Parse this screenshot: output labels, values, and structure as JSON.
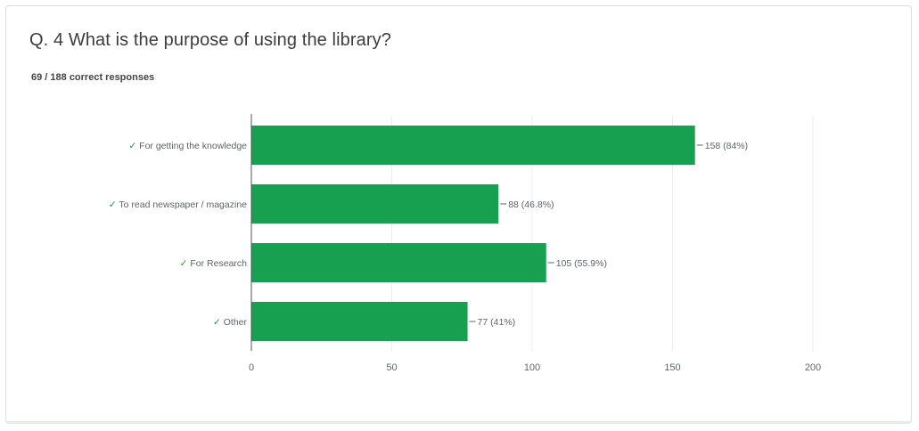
{
  "question": {
    "title": "Q. 4 What is the purpose of using the library?",
    "subtitle": "69 / 188 correct responses"
  },
  "colors": {
    "bar": "#17a050",
    "check": "#1e8e3e",
    "label": "#5f6368",
    "grid": "#ececec",
    "axis": "#555555"
  },
  "chart_data": {
    "type": "bar",
    "orientation": "horizontal",
    "categories": [
      "For getting the knowledge",
      "To read newspaper / magazine",
      "For Research",
      "Other"
    ],
    "correct_marks": [
      true,
      true,
      true,
      true
    ],
    "check_glyph": "✓",
    "values": [
      158,
      88,
      105,
      77
    ],
    "value_labels": [
      "158 (84%)",
      "88 (46.8%)",
      "105 (55.9%)",
      "77 (41%)"
    ],
    "xlim": [
      0,
      200
    ],
    "x_ticks": [
      0,
      50,
      100,
      150,
      200
    ],
    "grid": true
  }
}
